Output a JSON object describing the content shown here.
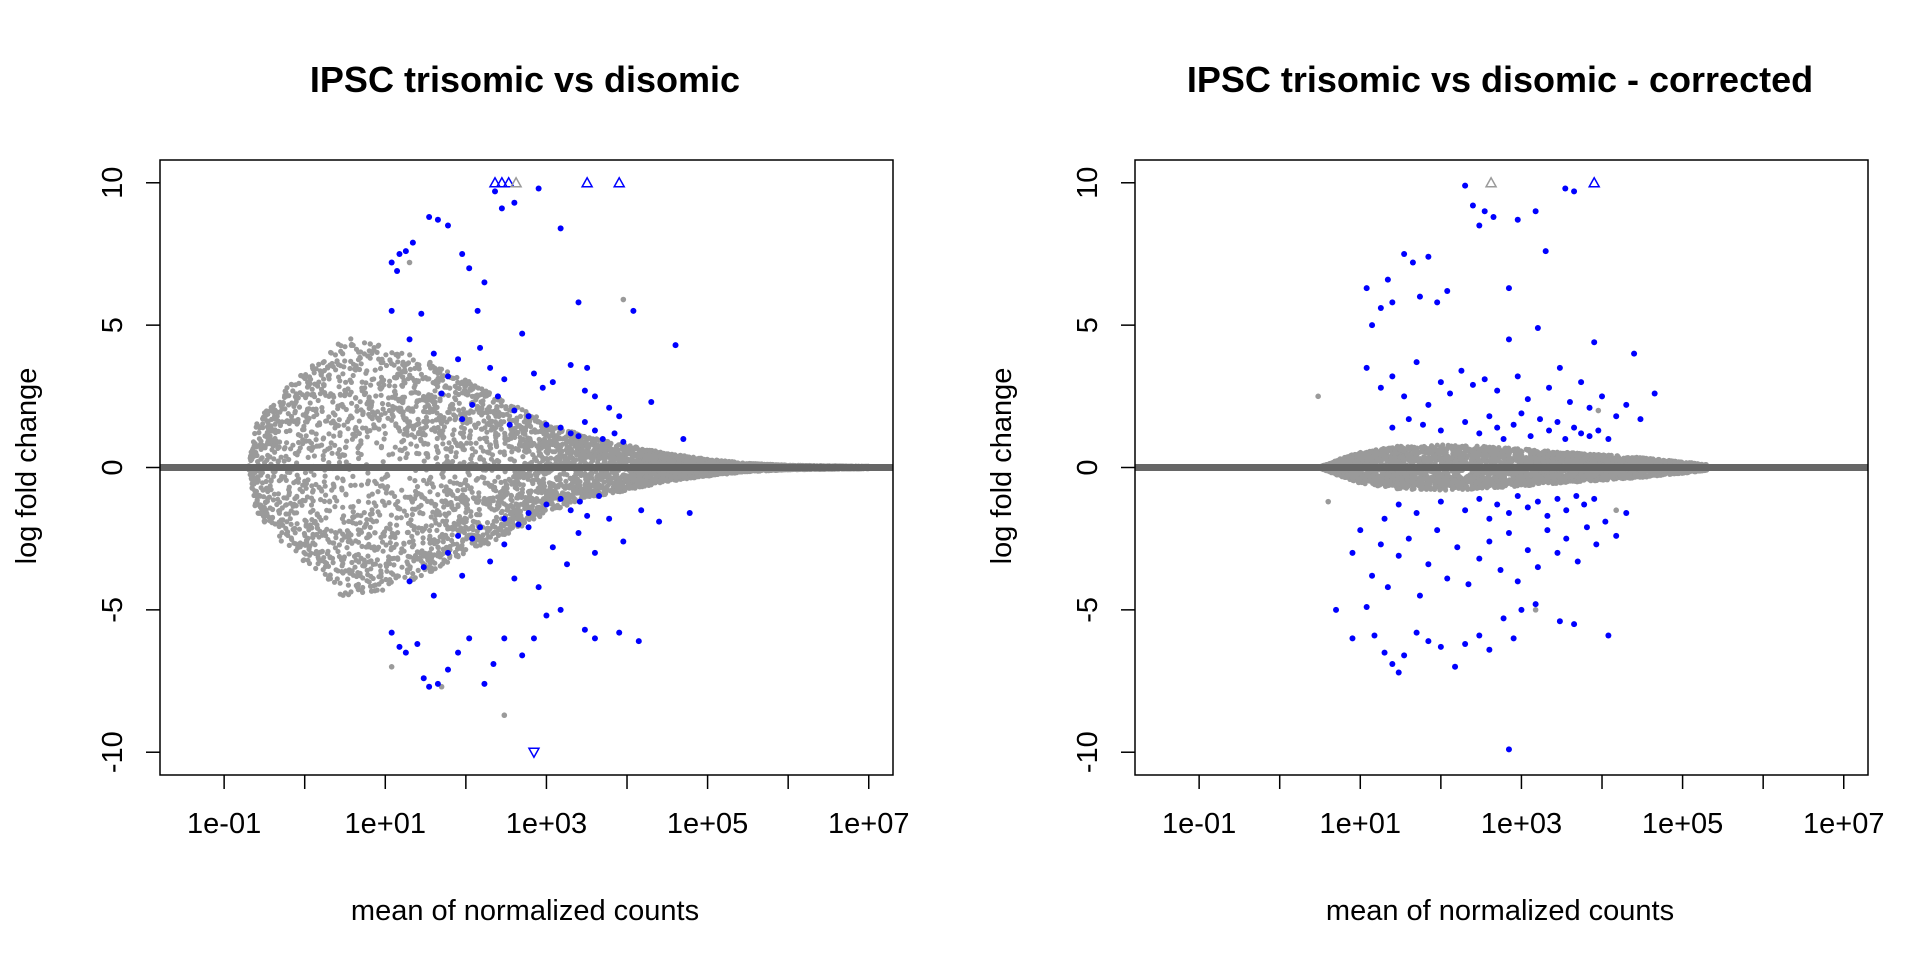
{
  "colors": {
    "background": "#ffffff",
    "nonsignificant": "#9a9a9a",
    "significant": "#0000ff",
    "baseline": "#666666",
    "frame": "#000000"
  },
  "chart_data": [
    {
      "type": "scatter",
      "title": "IPSC trisomic vs disomic",
      "xlabel": "mean of normalized counts",
      "ylabel": "log fold change",
      "x_scale": "log10",
      "xlim": [
        0.016,
        20000000
      ],
      "ylim": [
        -10.8,
        10.8
      ],
      "x_ticks": [
        0.1,
        1,
        10,
        100,
        1000,
        10000,
        100000,
        1000000,
        10000000
      ],
      "x_tick_labels": [
        "1e-01",
        "",
        "1e+01",
        "",
        "1e+03",
        "",
        "1e+05",
        "",
        "1e+07"
      ],
      "y_ticks": [
        -10,
        -5,
        0,
        5,
        10
      ],
      "y_tick_labels": [
        "-10",
        "-5",
        "0",
        "5",
        "10"
      ],
      "reference_line_y": 0,
      "gray_cloud": {
        "description_free": true,
        "peak_abs_lfc": [
          [
            0.2,
            0.0
          ],
          [
            0.25,
            1.6
          ],
          [
            0.5,
            2.6
          ],
          [
            1,
            3.4
          ],
          [
            2,
            4.0
          ],
          [
            3,
            4.6
          ],
          [
            10,
            4.3
          ],
          [
            30,
            3.8
          ],
          [
            100,
            3.1
          ],
          [
            300,
            2.4
          ],
          [
            1000,
            1.6
          ],
          [
            3000,
            1.1
          ],
          [
            10000,
            0.8
          ],
          [
            30000,
            0.5
          ],
          [
            100000,
            0.3
          ],
          [
            300000,
            0.15
          ],
          [
            1000000,
            0.08
          ],
          [
            10000000,
            0.04
          ]
        ]
      },
      "significant_points": [
        [
          12,
          7.2
        ],
        [
          15,
          7.5
        ],
        [
          18,
          7.6
        ],
        [
          22,
          7.9
        ],
        [
          14,
          6.9
        ],
        [
          28,
          5.4
        ],
        [
          35,
          8.8
        ],
        [
          45,
          8.7
        ],
        [
          60,
          8.5
        ],
        [
          90,
          7.5
        ],
        [
          110,
          7.0
        ],
        [
          140,
          5.5
        ],
        [
          170,
          6.5
        ],
        [
          230,
          9.7
        ],
        [
          280,
          9.1
        ],
        [
          400,
          9.3
        ],
        [
          800,
          9.8
        ],
        [
          1500,
          8.4
        ],
        [
          2500,
          5.8
        ],
        [
          3200,
          3.5
        ],
        [
          12,
          5.5
        ],
        [
          20,
          4.5
        ],
        [
          40,
          4.0
        ],
        [
          60,
          3.2
        ],
        [
          80,
          3.8
        ],
        [
          150,
          4.2
        ],
        [
          200,
          3.5
        ],
        [
          300,
          3.1
        ],
        [
          500,
          4.7
        ],
        [
          700,
          3.3
        ],
        [
          900,
          2.8
        ],
        [
          1200,
          3.0
        ],
        [
          2000,
          3.6
        ],
        [
          3000,
          2.7
        ],
        [
          4000,
          2.5
        ],
        [
          6000,
          2.1
        ],
        [
          8000,
          1.8
        ],
        [
          12000,
          5.5
        ],
        [
          20000,
          2.3
        ],
        [
          40000,
          4.3
        ],
        [
          50000,
          1.0
        ],
        [
          1000,
          1.5
        ],
        [
          1500,
          1.4
        ],
        [
          2000,
          1.2
        ],
        [
          2500,
          1.1
        ],
        [
          3000,
          1.6
        ],
        [
          4000,
          1.3
        ],
        [
          5000,
          1.0
        ],
        [
          7000,
          1.2
        ],
        [
          9000,
          0.9
        ],
        [
          600,
          1.8
        ],
        [
          400,
          2.0
        ],
        [
          350,
          1.5
        ],
        [
          250,
          2.5
        ],
        [
          120,
          2.2
        ],
        [
          90,
          1.7
        ],
        [
          50,
          2.6
        ],
        [
          12,
          -5.8
        ],
        [
          15,
          -6.3
        ],
        [
          18,
          -6.5
        ],
        [
          25,
          -6.2
        ],
        [
          30,
          -7.4
        ],
        [
          35,
          -7.7
        ],
        [
          45,
          -7.6
        ],
        [
          60,
          -7.1
        ],
        [
          80,
          -6.5
        ],
        [
          110,
          -6.0
        ],
        [
          170,
          -7.6
        ],
        [
          220,
          -6.9
        ],
        [
          300,
          -6.0
        ],
        [
          500,
          -6.6
        ],
        [
          700,
          -6.0
        ],
        [
          1000,
          -5.2
        ],
        [
          1500,
          -5.0
        ],
        [
          3000,
          -5.7
        ],
        [
          4000,
          -6.0
        ],
        [
          8000,
          -5.8
        ],
        [
          14000,
          -6.1
        ],
        [
          20,
          -4.0
        ],
        [
          30,
          -3.5
        ],
        [
          40,
          -4.5
        ],
        [
          60,
          -3.0
        ],
        [
          90,
          -3.8
        ],
        [
          120,
          -2.5
        ],
        [
          200,
          -3.3
        ],
        [
          300,
          -2.7
        ],
        [
          400,
          -3.9
        ],
        [
          600,
          -2.1
        ],
        [
          800,
          -4.2
        ],
        [
          1200,
          -2.8
        ],
        [
          1800,
          -3.4
        ],
        [
          2500,
          -2.3
        ],
        [
          4000,
          -3.0
        ],
        [
          6000,
          -1.8
        ],
        [
          9000,
          -2.6
        ],
        [
          15000,
          -1.5
        ],
        [
          25000,
          -1.9
        ],
        [
          60000,
          -1.6
        ],
        [
          1000,
          -1.3
        ],
        [
          1500,
          -1.1
        ],
        [
          2000,
          -1.5
        ],
        [
          2600,
          -1.2
        ],
        [
          3200,
          -1.7
        ],
        [
          4500,
          -1.0
        ],
        [
          600,
          -1.6
        ],
        [
          450,
          -2.0
        ],
        [
          300,
          -1.8
        ],
        [
          150,
          -2.1
        ],
        [
          80,
          -2.4
        ]
      ],
      "significant_triangles_up": [
        [
          230,
          10
        ],
        [
          280,
          10
        ],
        [
          340,
          10
        ],
        [
          3200,
          10
        ],
        [
          8000,
          10
        ]
      ],
      "gray_triangles_up": [
        [
          420,
          10
        ]
      ],
      "significant_triangles_down": [
        [
          700,
          -10
        ]
      ],
      "extra_gray_points": [
        [
          20,
          7.2
        ],
        [
          9000,
          5.9
        ],
        [
          300,
          -8.7
        ],
        [
          12,
          -7.0
        ],
        [
          50,
          -7.7
        ]
      ]
    },
    {
      "type": "scatter",
      "title": "IPSC trisomic vs disomic - corrected",
      "xlabel": "mean of normalized counts",
      "ylabel": "log fold change",
      "x_scale": "log10",
      "xlim": [
        0.016,
        20000000
      ],
      "ylim": [
        -10.8,
        10.8
      ],
      "x_ticks": [
        0.1,
        1,
        10,
        100,
        1000,
        10000,
        100000,
        1000000,
        10000000
      ],
      "x_tick_labels": [
        "1e-01",
        "",
        "1e+01",
        "",
        "1e+03",
        "",
        "1e+05",
        "",
        "1e+07"
      ],
      "y_ticks": [
        -10,
        -5,
        0,
        5,
        10
      ],
      "y_tick_labels": [
        "-10",
        "-5",
        "0",
        "5",
        "10"
      ],
      "reference_line_y": 0,
      "gray_cloud": {
        "description_free": true,
        "peak_abs_lfc": [
          [
            3,
            0.0
          ],
          [
            5,
            0.25
          ],
          [
            10,
            0.55
          ],
          [
            30,
            0.75
          ],
          [
            100,
            0.8
          ],
          [
            300,
            0.75
          ],
          [
            1000,
            0.65
          ],
          [
            3000,
            0.55
          ],
          [
            10000,
            0.45
          ],
          [
            30000,
            0.35
          ],
          [
            100000,
            0.2
          ],
          [
            200000,
            0.1
          ]
        ]
      },
      "significant_points": [
        [
          12,
          6.3
        ],
        [
          14,
          5.0
        ],
        [
          18,
          5.6
        ],
        [
          22,
          6.6
        ],
        [
          25,
          5.8
        ],
        [
          35,
          7.5
        ],
        [
          45,
          7.2
        ],
        [
          55,
          6.0
        ],
        [
          70,
          7.4
        ],
        [
          90,
          5.8
        ],
        [
          120,
          6.2
        ],
        [
          200,
          9.9
        ],
        [
          250,
          9.2
        ],
        [
          300,
          8.5
        ],
        [
          350,
          9.0
        ],
        [
          450,
          8.8
        ],
        [
          700,
          6.3
        ],
        [
          900,
          8.7
        ],
        [
          1500,
          9.0
        ],
        [
          2000,
          7.6
        ],
        [
          3500,
          9.8
        ],
        [
          4500,
          9.7
        ],
        [
          8000,
          4.4
        ],
        [
          25000,
          4.0
        ],
        [
          12,
          3.5
        ],
        [
          18,
          2.8
        ],
        [
          25,
          3.2
        ],
        [
          35,
          2.5
        ],
        [
          50,
          3.7
        ],
        [
          70,
          2.2
        ],
        [
          100,
          3.0
        ],
        [
          130,
          2.6
        ],
        [
          180,
          3.4
        ],
        [
          250,
          2.9
        ],
        [
          350,
          3.1
        ],
        [
          500,
          2.7
        ],
        [
          700,
          4.5
        ],
        [
          900,
          3.2
        ],
        [
          1200,
          2.4
        ],
        [
          1600,
          4.9
        ],
        [
          2200,
          2.8
        ],
        [
          3000,
          3.5
        ],
        [
          4000,
          2.3
        ],
        [
          5500,
          3.0
        ],
        [
          7000,
          2.1
        ],
        [
          10000,
          2.5
        ],
        [
          15000,
          1.8
        ],
        [
          20000,
          2.2
        ],
        [
          30000,
          1.7
        ],
        [
          45000,
          2.6
        ],
        [
          100,
          1.3
        ],
        [
          200,
          1.6
        ],
        [
          300,
          1.2
        ],
        [
          400,
          1.8
        ],
        [
          500,
          1.4
        ],
        [
          600,
          1.0
        ],
        [
          800,
          1.5
        ],
        [
          1000,
          1.9
        ],
        [
          1300,
          1.1
        ],
        [
          1700,
          1.7
        ],
        [
          2200,
          1.3
        ],
        [
          2800,
          1.6
        ],
        [
          3500,
          1.0
        ],
        [
          4500,
          1.4
        ],
        [
          5500,
          1.2
        ],
        [
          7000,
          1.1
        ],
        [
          9000,
          1.3
        ],
        [
          12000,
          1.0
        ],
        [
          60,
          1.5
        ],
        [
          40,
          1.7
        ],
        [
          25,
          1.4
        ],
        [
          5,
          -5.0
        ],
        [
          8,
          -6.0
        ],
        [
          12,
          -4.9
        ],
        [
          15,
          -5.9
        ],
        [
          20,
          -6.5
        ],
        [
          25,
          -6.9
        ],
        [
          30,
          -7.2
        ],
        [
          35,
          -6.6
        ],
        [
          50,
          -5.8
        ],
        [
          70,
          -6.1
        ],
        [
          100,
          -6.3
        ],
        [
          150,
          -7.0
        ],
        [
          200,
          -6.2
        ],
        [
          300,
          -5.9
        ],
        [
          400,
          -6.4
        ],
        [
          600,
          -5.3
        ],
        [
          800,
          -6.0
        ],
        [
          1000,
          -5.0
        ],
        [
          1500,
          -4.8
        ],
        [
          3000,
          -5.4
        ],
        [
          4500,
          -5.5
        ],
        [
          12000,
          -5.9
        ],
        [
          700,
          -9.9
        ],
        [
          8,
          -3.0
        ],
        [
          10,
          -2.2
        ],
        [
          14,
          -3.8
        ],
        [
          18,
          -2.7
        ],
        [
          22,
          -4.2
        ],
        [
          30,
          -3.1
        ],
        [
          40,
          -2.5
        ],
        [
          55,
          -4.5
        ],
        [
          70,
          -3.4
        ],
        [
          90,
          -2.2
        ],
        [
          120,
          -3.9
        ],
        [
          160,
          -2.8
        ],
        [
          220,
          -4.1
        ],
        [
          300,
          -3.2
        ],
        [
          400,
          -2.6
        ],
        [
          550,
          -3.6
        ],
        [
          700,
          -2.3
        ],
        [
          900,
          -4.0
        ],
        [
          1200,
          -2.9
        ],
        [
          1600,
          -3.5
        ],
        [
          2100,
          -2.2
        ],
        [
          2800,
          -3.0
        ],
        [
          3600,
          -2.5
        ],
        [
          5000,
          -3.3
        ],
        [
          6500,
          -2.1
        ],
        [
          8500,
          -2.7
        ],
        [
          11000,
          -1.9
        ],
        [
          15000,
          -2.4
        ],
        [
          20000,
          -1.6
        ],
        [
          100,
          -1.2
        ],
        [
          200,
          -1.5
        ],
        [
          300,
          -1.1
        ],
        [
          400,
          -1.8
        ],
        [
          500,
          -1.3
        ],
        [
          700,
          -1.6
        ],
        [
          900,
          -1.0
        ],
        [
          1200,
          -1.4
        ],
        [
          1600,
          -1.2
        ],
        [
          2100,
          -1.7
        ],
        [
          2800,
          -1.1
        ],
        [
          3600,
          -1.5
        ],
        [
          4800,
          -1.0
        ],
        [
          6000,
          -1.3
        ],
        [
          8000,
          -1.1
        ],
        [
          50,
          -1.6
        ],
        [
          30,
          -1.3
        ],
        [
          20,
          -1.8
        ]
      ],
      "significant_triangles_up": [
        [
          8000,
          10
        ]
      ],
      "gray_triangles_up": [
        [
          420,
          10
        ]
      ],
      "significant_triangles_down": [],
      "extra_gray_points": [
        [
          3,
          2.5
        ],
        [
          4,
          -1.2
        ],
        [
          9000,
          2.0
        ],
        [
          1500,
          -5.0
        ],
        [
          15000,
          -1.5
        ]
      ]
    }
  ]
}
